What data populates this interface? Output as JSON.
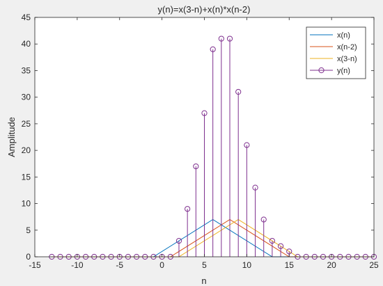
{
  "chart_data": {
    "type": "line",
    "title": "y(n)=x(3-n)+x(n)*x(n-2)",
    "xlabel": "n",
    "ylabel": "Amplitude",
    "xlim": [
      -15,
      25
    ],
    "ylim": [
      0,
      45
    ],
    "xticks": [
      "-15",
      "-10",
      "-5",
      "0",
      "5",
      "10",
      "15",
      "20",
      "25"
    ],
    "yticks": [
      "0",
      "5",
      "10",
      "15",
      "20",
      "25",
      "30",
      "35",
      "40",
      "45"
    ],
    "legend_position": "top-right",
    "series": [
      {
        "name": "x(n)",
        "style": "line",
        "color": "#0072bd",
        "x": [
          -13,
          -1,
          6,
          13,
          25
        ],
        "y": [
          0,
          0,
          7,
          0,
          0
        ]
      },
      {
        "name": "x(n-2)",
        "style": "line",
        "color": "#d95319",
        "x": [
          -13,
          1,
          8,
          15,
          25
        ],
        "y": [
          0,
          0,
          7,
          0,
          0
        ]
      },
      {
        "name": "x(3-n)",
        "style": "line",
        "color": "#edb120",
        "x": [
          -13,
          2,
          9,
          16,
          25
        ],
        "y": [
          0,
          0,
          7,
          0,
          0
        ]
      },
      {
        "name": "y(n)",
        "style": "stem",
        "color": "#7e2f8e",
        "x": [
          -13,
          -12,
          -11,
          -10,
          -9,
          -8,
          -7,
          -6,
          -5,
          -4,
          -3,
          -2,
          -1,
          0,
          1,
          2,
          3,
          4,
          5,
          6,
          7,
          8,
          9,
          10,
          11,
          12,
          13,
          14,
          15,
          16,
          17,
          18,
          19,
          20,
          21,
          22,
          23,
          24,
          25
        ],
        "y": [
          0,
          0,
          0,
          0,
          0,
          0,
          0,
          0,
          0,
          0,
          0,
          0,
          0,
          0,
          0,
          3,
          9,
          17,
          27,
          39,
          41,
          41,
          31,
          21,
          13,
          7,
          3,
          2,
          1,
          0,
          0,
          0,
          0,
          0,
          0,
          0,
          0,
          0,
          0
        ]
      }
    ]
  }
}
